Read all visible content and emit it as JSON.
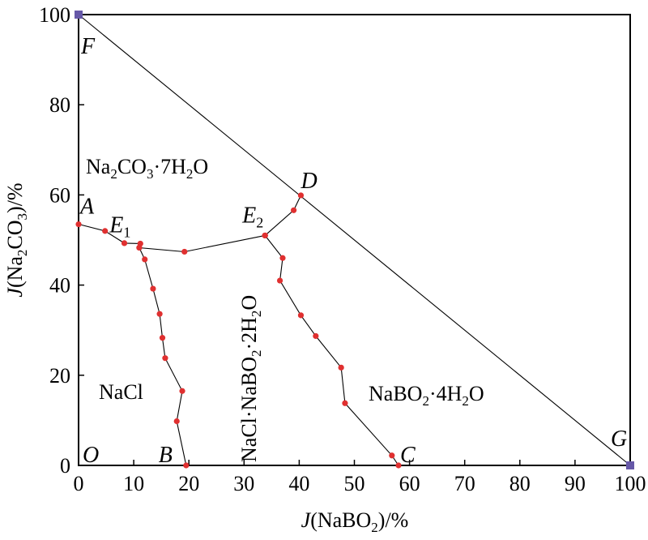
{
  "chart_data": {
    "type": "scatter",
    "xlabel": "J(NaBO2)/%",
    "ylabel": "J(Na2CO3)/%",
    "xlim": [
      0,
      100
    ],
    "ylim": [
      0,
      100
    ],
    "x_ticks": [
      "0",
      "10",
      "20",
      "30",
      "40",
      "50",
      "60",
      "70",
      "80",
      "90",
      "100"
    ],
    "y_ticks": [
      "0",
      "20",
      "40",
      "60",
      "80",
      "100"
    ],
    "grid": false,
    "series": [
      {
        "values": [
          [
            0,
            53.5
          ],
          [
            4.8,
            52.0
          ],
          [
            8.3,
            49.3
          ],
          [
            11.2,
            49.2
          ],
          [
            11.0,
            48.3
          ],
          [
            19.2,
            47.4
          ],
          [
            33.8,
            51.0
          ]
        ]
      },
      {
        "values": [
          [
            11.0,
            48.3
          ],
          [
            12.0,
            45.7
          ],
          [
            13.5,
            39.2
          ],
          [
            14.7,
            33.6
          ],
          [
            15.2,
            28.3
          ],
          [
            15.7,
            23.8
          ],
          [
            18.8,
            16.5
          ],
          [
            17.8,
            9.8
          ],
          [
            19.5,
            0
          ]
        ]
      },
      {
        "values": [
          [
            33.8,
            51.0
          ],
          [
            37.0,
            46.0
          ],
          [
            36.5,
            41.0
          ],
          [
            40.3,
            33.3
          ],
          [
            43.0,
            28.7
          ],
          [
            47.6,
            21.7
          ],
          [
            48.3,
            13.8
          ],
          [
            56.8,
            2.2
          ],
          [
            58.0,
            0
          ]
        ]
      },
      {
        "values": [
          [
            33.8,
            51.0
          ],
          [
            39.0,
            56.6
          ],
          [
            40.3,
            59.9
          ]
        ]
      },
      {
        "values": [
          [
            0,
            100
          ],
          [
            100,
            0
          ]
        ]
      }
    ],
    "square_points": [
      [
        0,
        100
      ],
      [
        100,
        0
      ]
    ],
    "point_labels": [
      {
        "text": "A",
        "x": 0,
        "y": 53.5
      },
      {
        "text": "E",
        "sub": "1",
        "x": 11.2,
        "y": 49.2
      },
      {
        "text": "E",
        "sub": "2",
        "x": 33.8,
        "y": 51.0
      },
      {
        "text": "D",
        "x": 40.3,
        "y": 59.9
      },
      {
        "text": "F",
        "x": 0,
        "y": 100
      },
      {
        "text": "G",
        "x": 100,
        "y": 0
      },
      {
        "text": "O",
        "x": 0,
        "y": 0
      },
      {
        "text": "B",
        "x": 19.5,
        "y": 0
      },
      {
        "text": "C",
        "x": 58.0,
        "y": 0
      }
    ],
    "region_labels": [
      "Na2CO3·7H2O",
      "NaCl",
      "NaCl·NaBO2·2H2O",
      "NaBO2·4H2O"
    ]
  }
}
